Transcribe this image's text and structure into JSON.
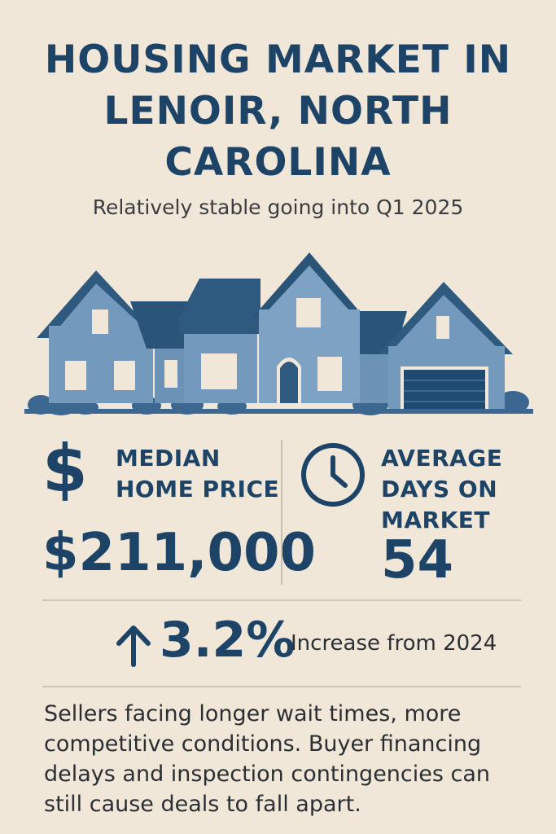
{
  "header": {
    "title": "HOUSING MARKET IN LENOIR, NORTH CAROLINA",
    "subtitle": "Relatively stable going into Q1 2025"
  },
  "stats": {
    "median_price": {
      "icon": "dollar-icon",
      "icon_glyph": "$",
      "label_line1": "MEDIAN",
      "label_line2": "HOME PRICE",
      "value": "$211,000"
    },
    "days_on_market": {
      "icon": "clock-icon",
      "label_line1": "AVERAGE",
      "label_line2": "DAYS ON",
      "label_line3": "MARKET",
      "value": "54"
    }
  },
  "change": {
    "icon": "arrow-up-icon",
    "value": "3.2%",
    "label": "Increase from 2024"
  },
  "summary": "Sellers facing longer wait times, more competitive conditions. Buyer financing delays and inspection contingencies can still cause deals to fall apart.",
  "colors": {
    "background": "#f1e7d9",
    "primary": "#1d4466",
    "house_body": "#6f94b8",
    "roof": "#2f5a80"
  }
}
